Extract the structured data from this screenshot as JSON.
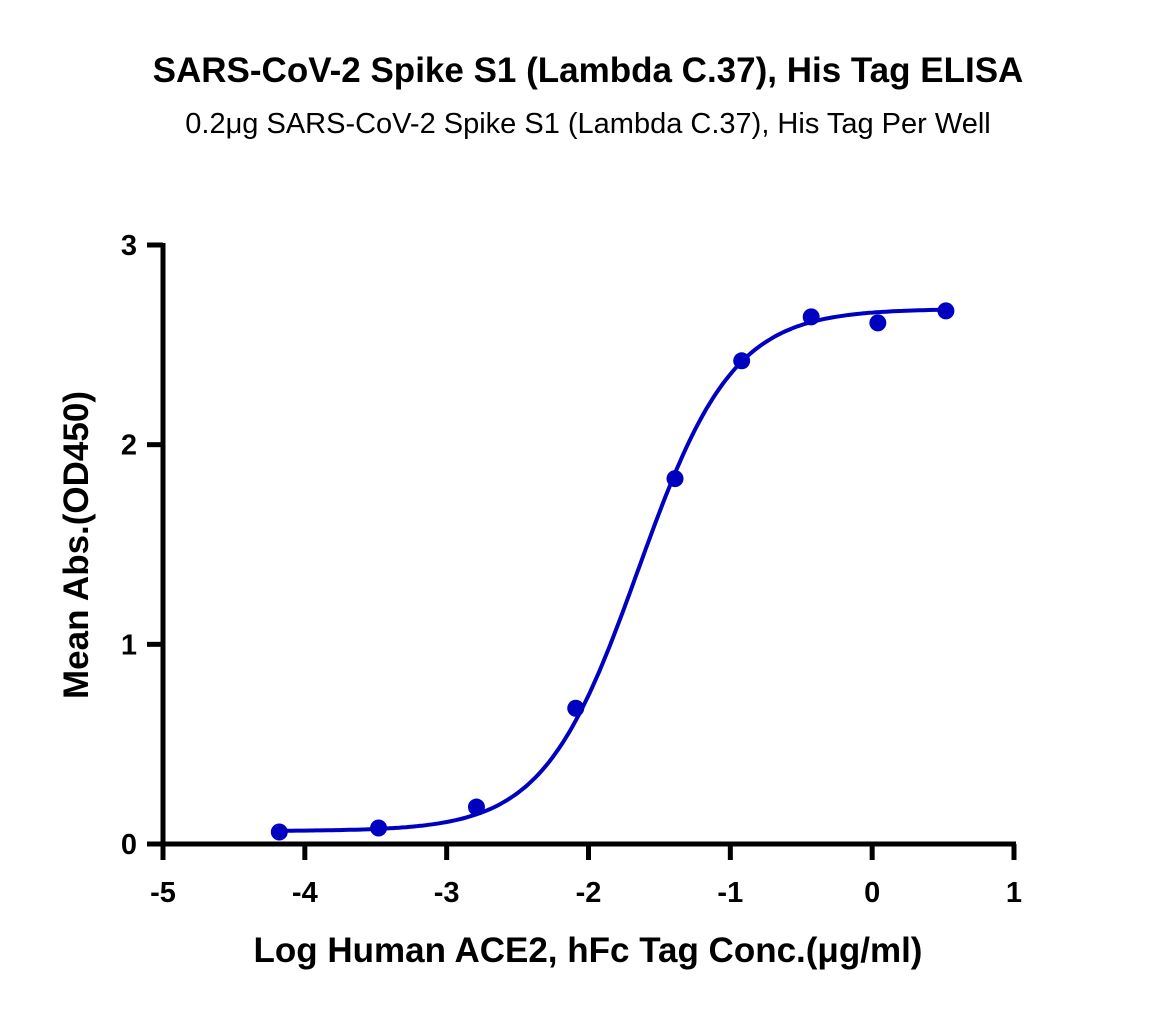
{
  "chart_data": {
    "type": "scatter",
    "title": "SARS-CoV-2 Spike S1 (Lambda C.37), His Tag ELISA",
    "subtitle": "0.2μg SARS-CoV-2 Spike S1 (Lambda C.37), His Tag Per Well",
    "xlabel": "Log Human ACE2, hFc Tag Conc.(μg/ml)",
    "ylabel": "Mean Abs.(OD450)",
    "xlim": [
      -5,
      1
    ],
    "ylim": [
      0,
      3
    ],
    "xticks": [
      "-5",
      "-4",
      "-3",
      "-2",
      "-1",
      "0",
      "1"
    ],
    "yticks": [
      "0",
      "1",
      "2",
      "3"
    ],
    "grid": false,
    "color": "#0000C0",
    "series": [
      {
        "name": "Mean Abs.",
        "x": [
          -4.18,
          -3.48,
          -2.79,
          -2.09,
          -1.39,
          -0.92,
          -0.43,
          0.04,
          0.52
        ],
        "y": [
          0.06,
          0.08,
          0.185,
          0.68,
          1.83,
          2.42,
          2.64,
          2.61,
          2.67
        ]
      }
    ],
    "fit": {
      "model": "4PL",
      "bottom": 0.065,
      "top": 2.68,
      "logEC50": -1.65,
      "hill": 1.3
    }
  }
}
